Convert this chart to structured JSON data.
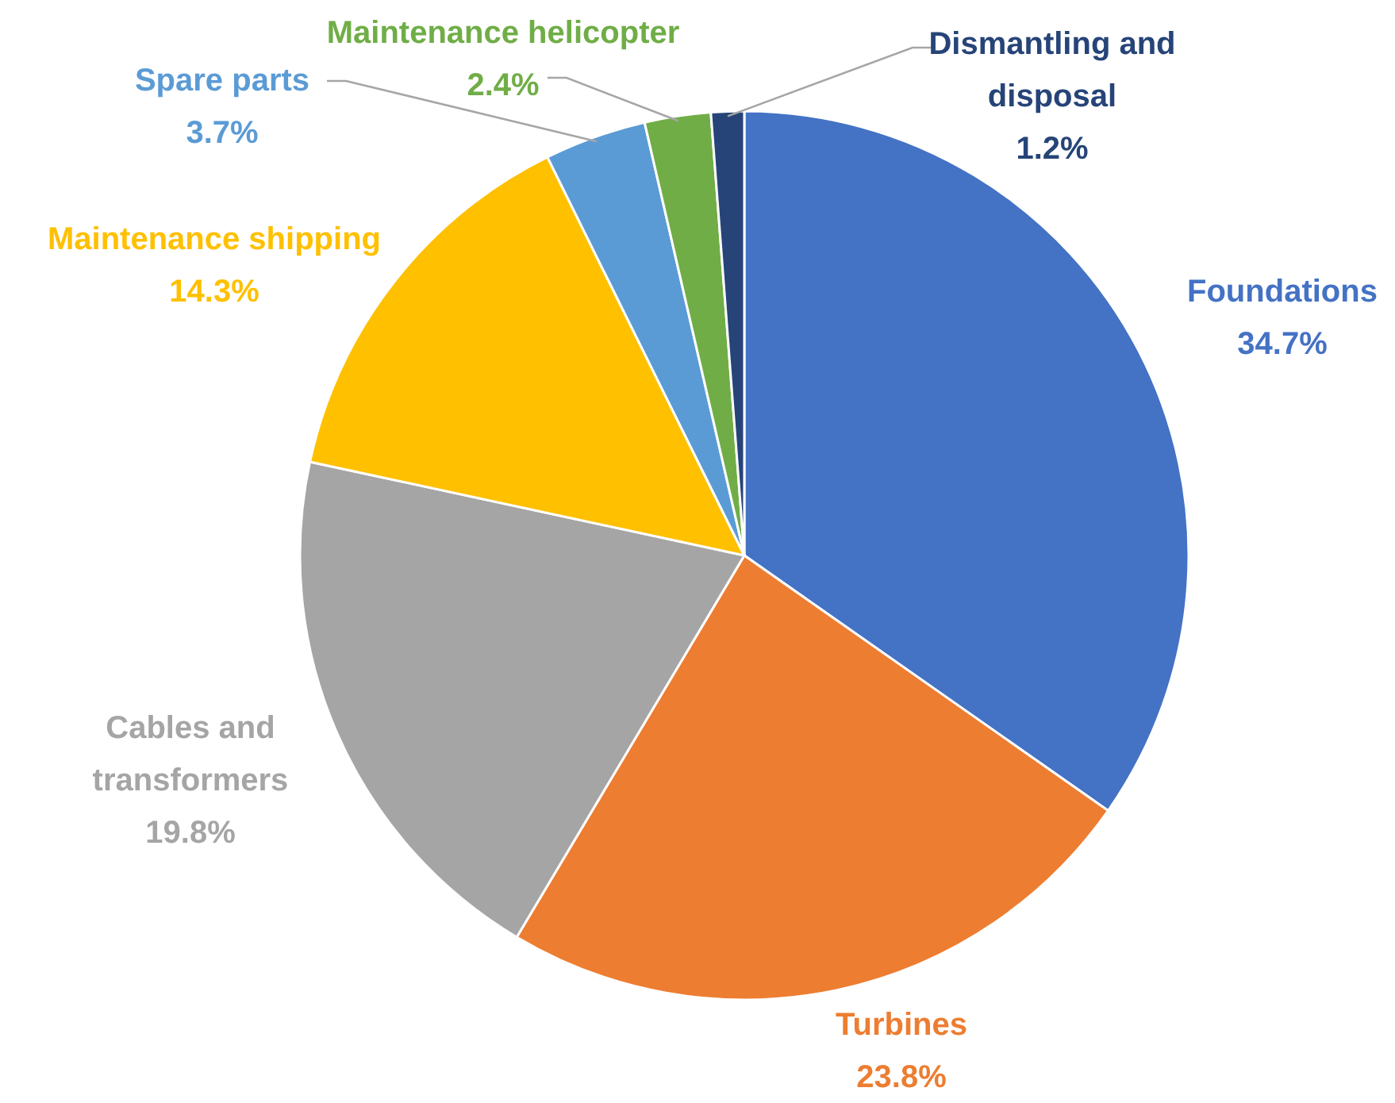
{
  "chart_data": {
    "type": "pie",
    "categories": [
      "Foundations",
      "Turbines",
      "Cables and transformers",
      "Maintenance shipping",
      "Spare parts",
      "Maintenance helicopter",
      "Dismantling and disposal"
    ],
    "values": [
      34.7,
      23.8,
      19.8,
      14.3,
      3.7,
      2.4,
      1.2
    ],
    "colors": [
      "#4472c4",
      "#ed7d31",
      "#a5a5a5",
      "#ffc000",
      "#5b9bd5",
      "#70ad47",
      "#264478"
    ],
    "value_labels": [
      "34.7%",
      "23.8%",
      "19.8%",
      "14.3%",
      "3.7%",
      "2.4%",
      "1.2%"
    ]
  }
}
